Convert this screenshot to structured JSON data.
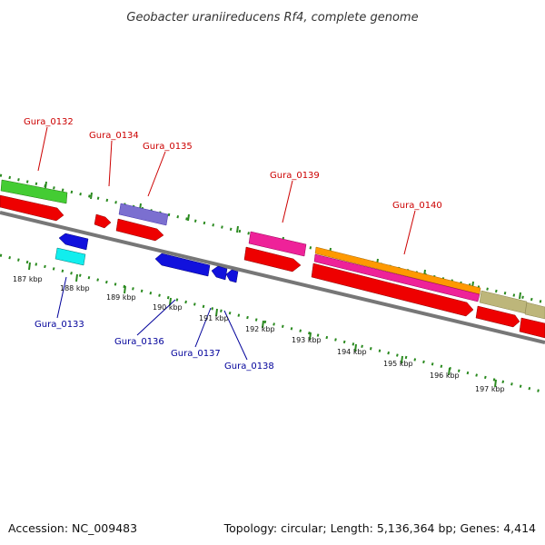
{
  "title": "Geobacter uraniireducens Rf4, complete genome",
  "footer": {
    "accession": "Accession: NC_009483",
    "summary": "Topology: circular; Length: 5,136,364 bp; Genes: 4,414"
  },
  "scale_labels": [
    "187 kbp",
    "188 kbp",
    "189 kbp",
    "190 kbp",
    "191 kbp",
    "192 kbp",
    "193 kbp",
    "194 kbp",
    "195 kbp",
    "196 kbp",
    "197 kbp"
  ],
  "labels": {
    "gura_0132": "Gura_0132",
    "gura_0133": "Gura_0133",
    "gura_0134": "Gura_0134",
    "gura_0135": "Gura_0135",
    "gura_0136": "Gura_0136",
    "gura_0137": "Gura_0137",
    "gura_0138": "Gura_0138",
    "gura_0139": "Gura_0139",
    "gura_0140": "Gura_0140"
  },
  "colors": {
    "backbone": "#777777",
    "cds": "#ee0000",
    "tick": "#2a8a1f",
    "forward_label": "#cc0000",
    "reverse_label": "#00009a",
    "green": "#44cc33",
    "purple": "#7b6fd0",
    "magenta": "#ee2299",
    "orange": "#ff9900",
    "khaki": "#bdb67a",
    "blue": "#1111dd",
    "cyan": "#11eeee"
  }
}
